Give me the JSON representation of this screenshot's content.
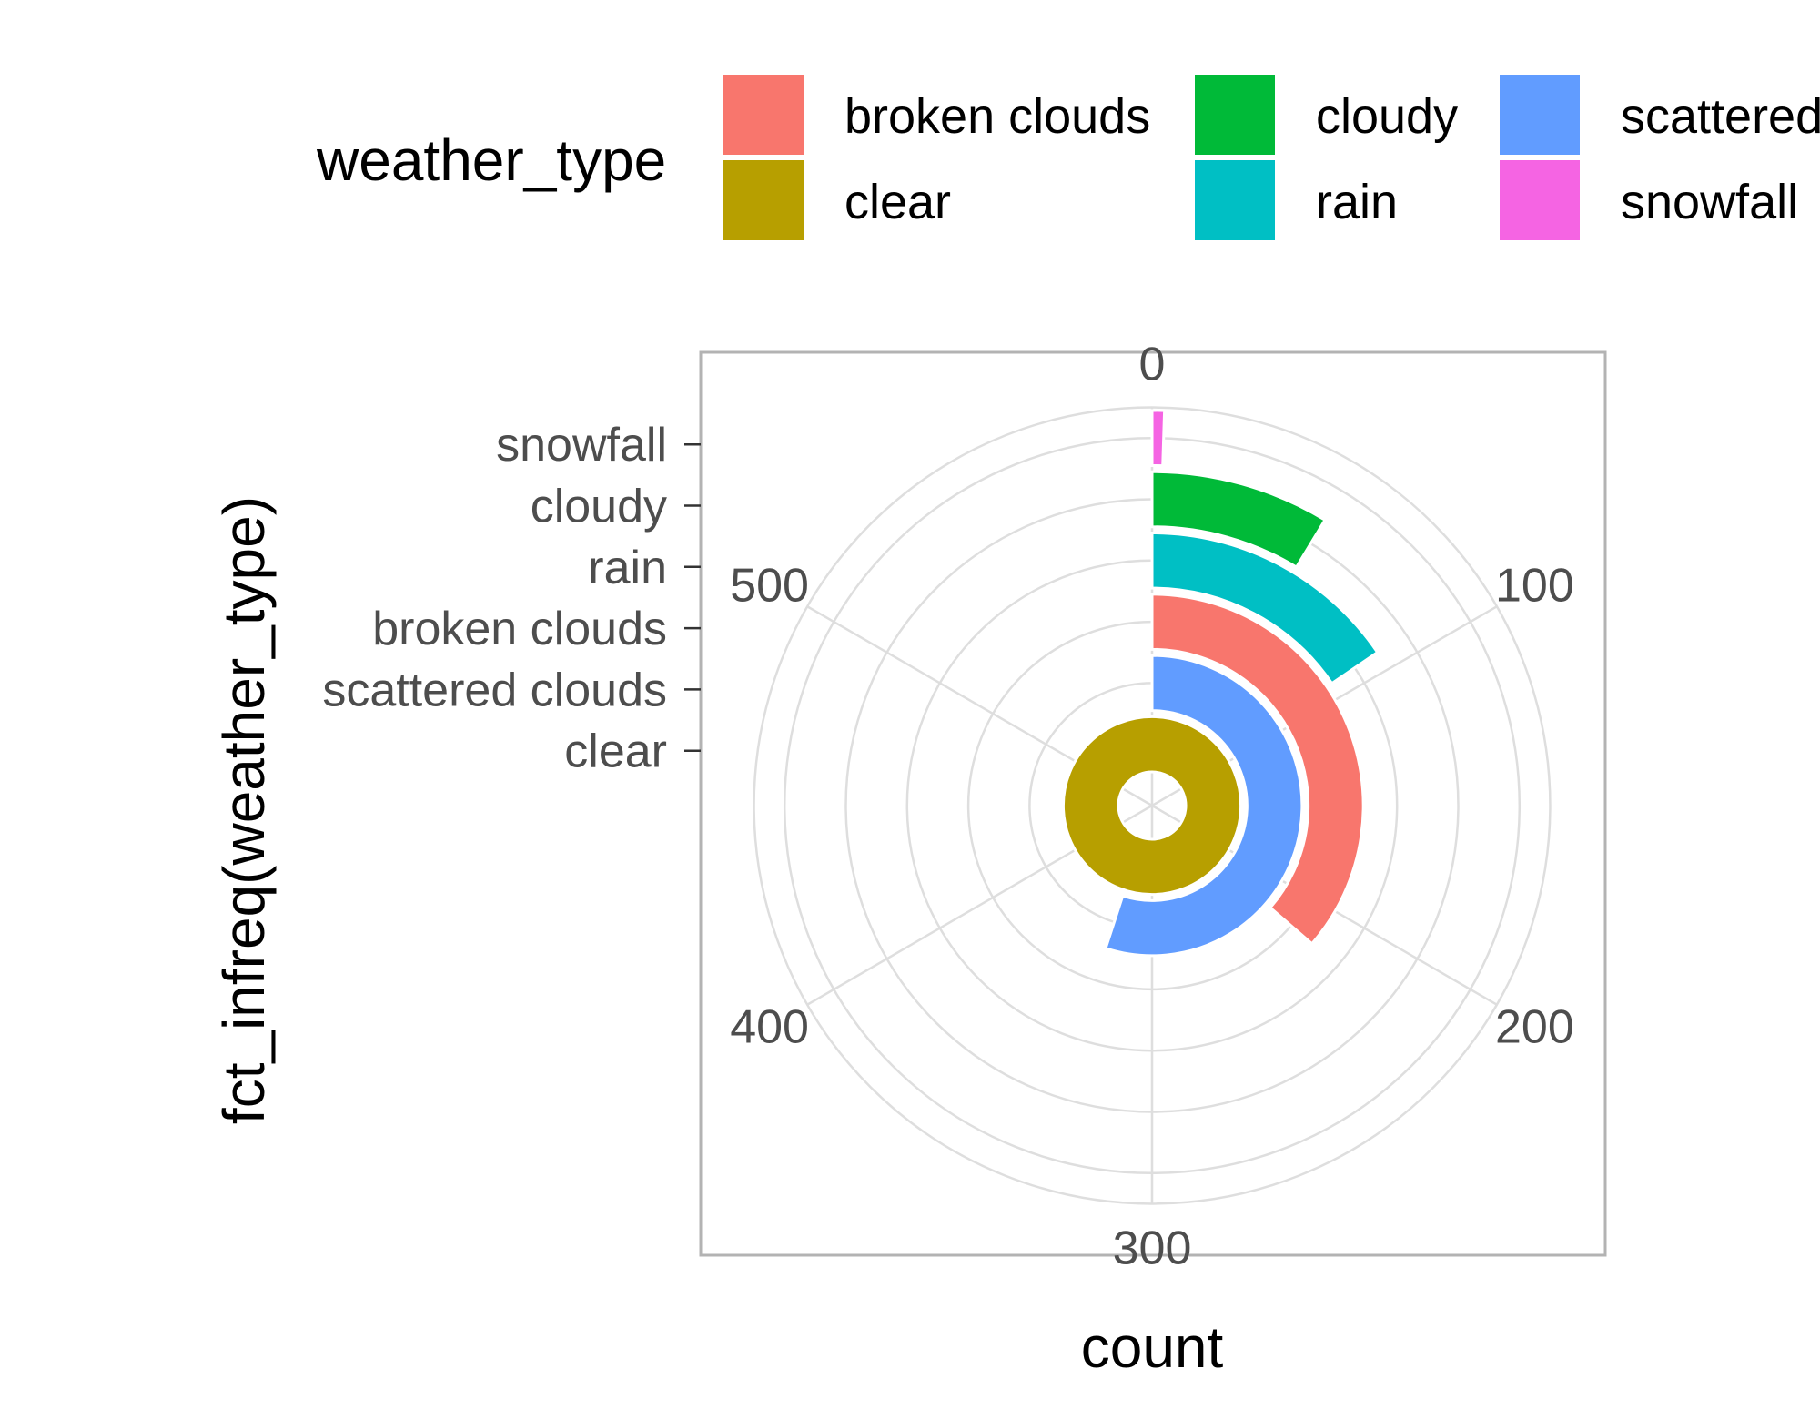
{
  "chart_data": {
    "type": "bar",
    "coord": "polar (theta = count, radius = category)",
    "xlabel": "count",
    "ylabel": "fct_infreq(weather_type)",
    "categories": [
      "clear",
      "scattered clouds",
      "broken clouds",
      "rain",
      "cloudy",
      "snowfall"
    ],
    "values": [
      600,
      330,
      218,
      93,
      52,
      3
    ],
    "theta_ticks": [
      0,
      100,
      200,
      300,
      400,
      500
    ],
    "theta_range": [
      0,
      600
    ],
    "grid": true,
    "legend": {
      "title": "weather_type",
      "position": "top",
      "items": [
        {
          "label": "broken clouds",
          "color": "#F8766D"
        },
        {
          "label": "clear",
          "color": "#B79F00"
        },
        {
          "label": "cloudy",
          "color": "#00BA38"
        },
        {
          "label": "rain",
          "color": "#00BFC4"
        },
        {
          "label": "scattered clouds",
          "color": "#619CFF"
        },
        {
          "label": "snowfall",
          "color": "#F564E3"
        }
      ]
    },
    "colors": {
      "clear": "#B79F00",
      "scattered clouds": "#619CFF",
      "broken clouds": "#F8766D",
      "rain": "#00BFC4",
      "cloudy": "#00BA38",
      "snowfall": "#F564E3"
    }
  }
}
